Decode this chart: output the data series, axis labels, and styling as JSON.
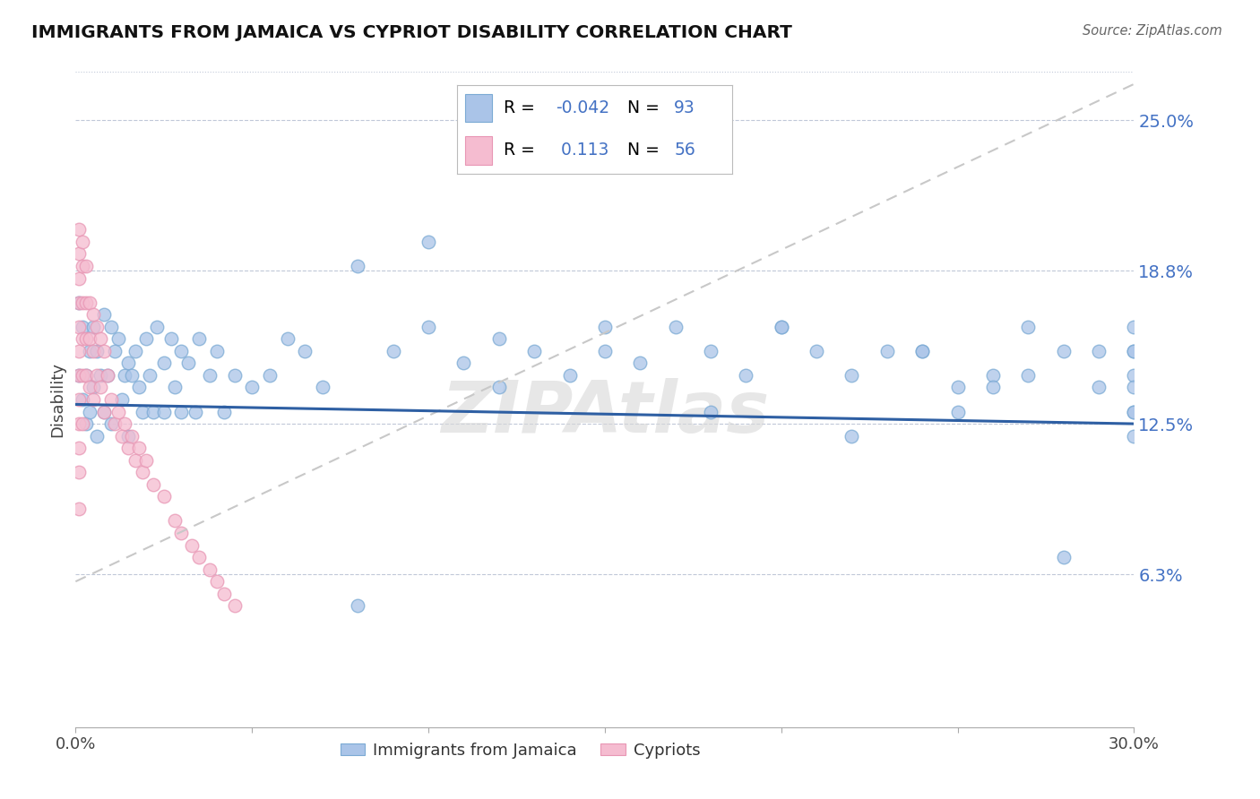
{
  "title": "IMMIGRANTS FROM JAMAICA VS CYPRIOT DISABILITY CORRELATION CHART",
  "source": "Source: ZipAtlas.com",
  "ylabel": "Disability",
  "xmin": 0.0,
  "xmax": 0.3,
  "ymin": 0.0,
  "ymax": 0.27,
  "ytick_vals": [
    0.063,
    0.125,
    0.188,
    0.25
  ],
  "ytick_labels": [
    "6.3%",
    "12.5%",
    "18.8%",
    "25.0%"
  ],
  "jamaica_color": "#aac4e8",
  "jamaica_edge_color": "#7baad4",
  "cyprus_color": "#f5bcd0",
  "cyprus_edge_color": "#e896b4",
  "jamaica_line_color": "#2e5fa3",
  "cyprus_line_color": "#c8c8c8",
  "watermark": "ZIPAtlas",
  "background_color": "#ffffff",
  "legend_blue": "#4472c4",
  "jamaica_trend": [
    0.133,
    0.125
  ],
  "cyprus_trend": [
    0.06,
    0.265
  ],
  "jamaica_scatter_x": [
    0.001,
    0.001,
    0.002,
    0.002,
    0.003,
    0.003,
    0.004,
    0.004,
    0.005,
    0.005,
    0.006,
    0.006,
    0.007,
    0.008,
    0.008,
    0.009,
    0.01,
    0.01,
    0.011,
    0.012,
    0.013,
    0.014,
    0.015,
    0.015,
    0.016,
    0.017,
    0.018,
    0.019,
    0.02,
    0.021,
    0.022,
    0.023,
    0.025,
    0.025,
    0.027,
    0.028,
    0.03,
    0.03,
    0.032,
    0.034,
    0.035,
    0.038,
    0.04,
    0.042,
    0.045,
    0.05,
    0.055,
    0.06,
    0.065,
    0.07,
    0.08,
    0.09,
    0.1,
    0.11,
    0.12,
    0.13,
    0.14,
    0.15,
    0.16,
    0.17,
    0.18,
    0.19,
    0.2,
    0.21,
    0.22,
    0.23,
    0.24,
    0.25,
    0.26,
    0.27,
    0.28,
    0.29,
    0.25,
    0.27,
    0.22,
    0.24,
    0.26,
    0.2,
    0.18,
    0.15,
    0.12,
    0.1,
    0.08,
    0.28,
    0.29,
    0.3,
    0.3,
    0.3,
    0.3,
    0.3,
    0.3,
    0.3,
    0.3
  ],
  "jamaica_scatter_y": [
    0.175,
    0.145,
    0.165,
    0.135,
    0.145,
    0.125,
    0.155,
    0.13,
    0.165,
    0.14,
    0.155,
    0.12,
    0.145,
    0.17,
    0.13,
    0.145,
    0.165,
    0.125,
    0.155,
    0.16,
    0.135,
    0.145,
    0.15,
    0.12,
    0.145,
    0.155,
    0.14,
    0.13,
    0.16,
    0.145,
    0.13,
    0.165,
    0.15,
    0.13,
    0.16,
    0.14,
    0.155,
    0.13,
    0.15,
    0.13,
    0.16,
    0.145,
    0.155,
    0.13,
    0.145,
    0.14,
    0.145,
    0.16,
    0.155,
    0.14,
    0.19,
    0.155,
    0.2,
    0.15,
    0.16,
    0.155,
    0.145,
    0.165,
    0.15,
    0.165,
    0.155,
    0.145,
    0.165,
    0.155,
    0.145,
    0.155,
    0.155,
    0.14,
    0.145,
    0.165,
    0.07,
    0.155,
    0.13,
    0.145,
    0.12,
    0.155,
    0.14,
    0.165,
    0.13,
    0.155,
    0.14,
    0.165,
    0.05,
    0.155,
    0.14,
    0.13,
    0.145,
    0.12,
    0.155,
    0.14,
    0.165,
    0.13,
    0.155
  ],
  "cyprus_scatter_x": [
    0.001,
    0.001,
    0.001,
    0.001,
    0.001,
    0.001,
    0.001,
    0.001,
    0.001,
    0.001,
    0.001,
    0.001,
    0.002,
    0.002,
    0.002,
    0.002,
    0.002,
    0.002,
    0.003,
    0.003,
    0.003,
    0.003,
    0.004,
    0.004,
    0.004,
    0.005,
    0.005,
    0.005,
    0.006,
    0.006,
    0.007,
    0.007,
    0.008,
    0.008,
    0.009,
    0.01,
    0.011,
    0.012,
    0.013,
    0.014,
    0.015,
    0.016,
    0.017,
    0.018,
    0.019,
    0.02,
    0.022,
    0.025,
    0.028,
    0.03,
    0.033,
    0.035,
    0.038,
    0.04,
    0.042,
    0.045
  ],
  "cyprus_scatter_y": [
    0.205,
    0.195,
    0.185,
    0.175,
    0.165,
    0.155,
    0.145,
    0.135,
    0.125,
    0.115,
    0.105,
    0.09,
    0.2,
    0.19,
    0.175,
    0.16,
    0.145,
    0.125,
    0.19,
    0.175,
    0.16,
    0.145,
    0.175,
    0.16,
    0.14,
    0.17,
    0.155,
    0.135,
    0.165,
    0.145,
    0.16,
    0.14,
    0.155,
    0.13,
    0.145,
    0.135,
    0.125,
    0.13,
    0.12,
    0.125,
    0.115,
    0.12,
    0.11,
    0.115,
    0.105,
    0.11,
    0.1,
    0.095,
    0.085,
    0.08,
    0.075,
    0.07,
    0.065,
    0.06,
    0.055,
    0.05
  ]
}
